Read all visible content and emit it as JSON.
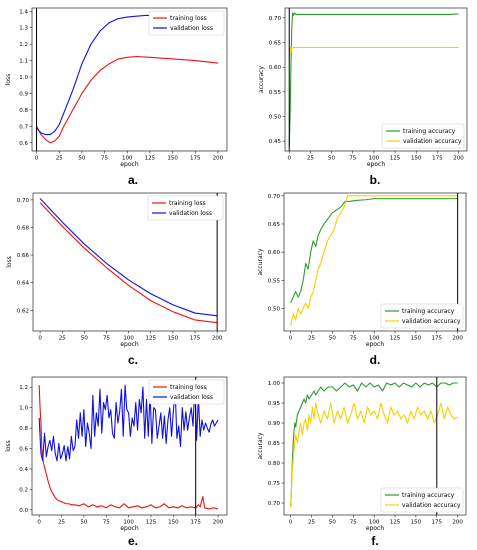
{
  "chart_data": [
    {
      "panel": "a.",
      "type": "line",
      "xlabel": "epoch",
      "ylabel": "loss",
      "xlim": [
        -5,
        210
      ],
      "ylim": [
        0.55,
        1.42
      ],
      "xticks": [
        0,
        25,
        50,
        75,
        100,
        125,
        150,
        175,
        200
      ],
      "yticks": [
        0.6,
        0.7,
        0.8,
        0.9,
        1.0,
        1.1,
        1.2,
        1.3,
        1.4
      ],
      "ytick_labels": [
        "0.6",
        "0.7",
        "0.8",
        "0.9",
        "1.0",
        "1.1",
        "1.2",
        "1.3",
        "1.4"
      ],
      "legend_position": "top-right",
      "vline_epoch": 0,
      "series": [
        {
          "name": "training loss",
          "color": "#ee1111",
          "x": [
            0,
            5,
            10,
            15,
            20,
            25,
            30,
            40,
            50,
            60,
            70,
            80,
            90,
            100,
            110,
            125,
            150,
            175,
            200
          ],
          "y": [
            0.7,
            0.65,
            0.62,
            0.6,
            0.61,
            0.64,
            0.7,
            0.8,
            0.9,
            0.98,
            1.04,
            1.08,
            1.11,
            1.12,
            1.125,
            1.12,
            1.11,
            1.1,
            1.085
          ]
        },
        {
          "name": "validation loss",
          "color": "#1111dd",
          "x": [
            0,
            5,
            10,
            15,
            20,
            25,
            30,
            40,
            50,
            60,
            70,
            80,
            90,
            100,
            110,
            120,
            150,
            175,
            200
          ],
          "y": [
            0.69,
            0.66,
            0.65,
            0.65,
            0.67,
            0.71,
            0.78,
            0.92,
            1.08,
            1.2,
            1.28,
            1.33,
            1.355,
            1.365,
            1.37,
            1.375,
            1.375,
            1.375,
            1.375
          ]
        }
      ]
    },
    {
      "panel": "b.",
      "type": "line",
      "xlabel": "epoch",
      "ylabel": "accuracy",
      "xlim": [
        -5,
        210
      ],
      "ylim": [
        0.43,
        0.72
      ],
      "xticks": [
        0,
        25,
        50,
        75,
        100,
        125,
        150,
        175,
        200
      ],
      "yticks": [
        0.45,
        0.5,
        0.55,
        0.6,
        0.65,
        0.7
      ],
      "ytick_labels": [
        "0.45",
        "0.50",
        "0.55",
        "0.60",
        "0.65",
        "0.70"
      ],
      "legend_position": "bottom-right",
      "vline_epoch": 0,
      "series": [
        {
          "name": "training accuracy",
          "color": "#2e9b2e",
          "x": [
            0,
            1,
            2,
            3,
            4,
            5,
            6,
            8,
            10,
            50,
            100,
            150,
            190,
            200
          ],
          "y": [
            0.44,
            0.5,
            0.6,
            0.68,
            0.71,
            0.705,
            0.71,
            0.707,
            0.707,
            0.707,
            0.707,
            0.707,
            0.707,
            0.708
          ]
        },
        {
          "name": "validation accuracy",
          "color": "#f2d200",
          "x": [
            0,
            1,
            2,
            3,
            4,
            5,
            6,
            8,
            10,
            50,
            100,
            150,
            200
          ],
          "y": [
            0.62,
            0.64,
            0.63,
            0.64,
            0.638,
            0.64,
            0.64,
            0.64,
            0.64,
            0.64,
            0.64,
            0.64,
            0.64
          ]
        }
      ]
    },
    {
      "panel": "c.",
      "type": "line",
      "xlabel": "epoch",
      "ylabel": "loss",
      "xlim": [
        -8,
        210
      ],
      "ylim": [
        0.605,
        0.705
      ],
      "xticks": [
        0,
        25,
        50,
        75,
        100,
        125,
        150,
        175,
        200
      ],
      "yticks": [
        0.62,
        0.64,
        0.66,
        0.68,
        0.7
      ],
      "ytick_labels": [
        "0.62",
        "0.64",
        "0.66",
        "0.68",
        "0.70"
      ],
      "legend_position": "top-right",
      "vline_epoch": 200,
      "series": [
        {
          "name": "training loss",
          "color": "#ee1111",
          "x": [
            0,
            25,
            50,
            75,
            100,
            125,
            150,
            175,
            200
          ],
          "y": [
            0.698,
            0.681,
            0.665,
            0.651,
            0.638,
            0.627,
            0.619,
            0.613,
            0.611
          ]
        },
        {
          "name": "validation loss",
          "color": "#1111dd",
          "x": [
            0,
            25,
            50,
            75,
            100,
            125,
            150,
            175,
            200
          ],
          "y": [
            0.701,
            0.684,
            0.668,
            0.654,
            0.642,
            0.632,
            0.624,
            0.618,
            0.616
          ]
        }
      ]
    },
    {
      "panel": "d.",
      "type": "line",
      "xlabel": "epoch",
      "ylabel": "accuracy",
      "xlim": [
        -8,
        210
      ],
      "ylim": [
        0.46,
        0.705
      ],
      "xticks": [
        0,
        25,
        50,
        75,
        100,
        125,
        150,
        175,
        200
      ],
      "yticks": [
        0.5,
        0.55,
        0.6,
        0.65,
        0.7
      ],
      "ytick_labels": [
        "0.50",
        "0.55",
        "0.60",
        "0.65",
        "0.70"
      ],
      "legend_position": "bottom-right",
      "vline_epoch": 200,
      "series": [
        {
          "name": "training accuracy",
          "color": "#2e9b2e",
          "x": [
            0,
            3,
            6,
            9,
            12,
            15,
            18,
            21,
            24,
            27,
            30,
            33,
            36,
            40,
            45,
            50,
            55,
            60,
            65,
            70,
            80,
            90,
            100,
            120,
            150,
            175,
            200
          ],
          "y": [
            0.51,
            0.52,
            0.53,
            0.52,
            0.53,
            0.55,
            0.58,
            0.57,
            0.6,
            0.62,
            0.61,
            0.63,
            0.64,
            0.65,
            0.66,
            0.67,
            0.675,
            0.68,
            0.69,
            0.69,
            0.692,
            0.693,
            0.695,
            0.695,
            0.695,
            0.695,
            0.695
          ]
        },
        {
          "name": "validation accuracy",
          "color": "#f2d200",
          "x": [
            0,
            3,
            6,
            9,
            12,
            15,
            18,
            21,
            24,
            27,
            30,
            33,
            36,
            40,
            44,
            48,
            52,
            56,
            60,
            64,
            68,
            72,
            80,
            100,
            150,
            200
          ],
          "y": [
            0.47,
            0.49,
            0.48,
            0.5,
            0.49,
            0.5,
            0.51,
            0.5,
            0.52,
            0.53,
            0.55,
            0.57,
            0.58,
            0.6,
            0.62,
            0.63,
            0.64,
            0.66,
            0.67,
            0.68,
            0.7,
            0.7,
            0.7,
            0.7,
            0.7,
            0.7
          ]
        }
      ]
    },
    {
      "panel": "e.",
      "type": "line",
      "xlabel": "epoch",
      "ylabel": "loss",
      "xlim": [
        -8,
        210
      ],
      "ylim": [
        -0.05,
        1.3
      ],
      "xticks": [
        0,
        25,
        50,
        75,
        100,
        125,
        150,
        175,
        200
      ],
      "yticks": [
        0.0,
        0.2,
        0.4,
        0.6,
        0.8,
        1.0,
        1.2
      ],
      "ytick_labels": [
        "0.0",
        "0.2",
        "0.4",
        "0.6",
        "0.8",
        "1.0",
        "1.2"
      ],
      "legend_position": "top-right",
      "vline_epoch": 175,
      "series": [
        {
          "name": "training loss",
          "color": "#ee1111",
          "x": [
            0,
            1,
            2,
            3,
            4,
            5,
            6,
            8,
            10,
            12,
            14,
            16,
            18,
            20,
            22,
            25,
            28,
            30,
            33,
            36,
            40,
            45,
            50,
            55,
            60,
            65,
            70,
            75,
            80,
            85,
            90,
            95,
            100,
            105,
            110,
            115,
            120,
            125,
            130,
            135,
            140,
            145,
            150,
            155,
            160,
            165,
            170,
            175,
            178,
            180,
            183,
            185,
            190,
            195,
            200
          ],
          "y": [
            1.22,
            1.0,
            0.85,
            0.6,
            0.5,
            0.45,
            0.42,
            0.35,
            0.28,
            0.22,
            0.18,
            0.15,
            0.12,
            0.1,
            0.09,
            0.08,
            0.07,
            0.06,
            0.06,
            0.05,
            0.05,
            0.04,
            0.06,
            0.03,
            0.05,
            0.03,
            0.04,
            0.02,
            0.05,
            0.03,
            0.02,
            0.06,
            0.02,
            0.03,
            0.04,
            0.02,
            0.03,
            0.05,
            0.02,
            0.03,
            0.06,
            0.02,
            0.03,
            0.02,
            0.04,
            0.02,
            0.03,
            0.02,
            0.05,
            0.03,
            0.13,
            0.02,
            0.01,
            0.02,
            0.01
          ]
        },
        {
          "name": "validation loss",
          "color": "#1111dd",
          "x": [
            0,
            2,
            4,
            6,
            8,
            10,
            12,
            14,
            16,
            18,
            20,
            22,
            24,
            26,
            28,
            30,
            32,
            34,
            36,
            38,
            40,
            42,
            44,
            46,
            48,
            50,
            52,
            54,
            56,
            58,
            60,
            62,
            64,
            66,
            68,
            70,
            72,
            74,
            76,
            78,
            80,
            82,
            84,
            86,
            88,
            90,
            92,
            94,
            96,
            98,
            100,
            102,
            104,
            106,
            108,
            110,
            112,
            114,
            116,
            118,
            120,
            122,
            124,
            126,
            128,
            130,
            132,
            134,
            136,
            138,
            140,
            142,
            144,
            146,
            148,
            150,
            152,
            154,
            156,
            158,
            160,
            162,
            164,
            166,
            168,
            170,
            172,
            174,
            176,
            178,
            180,
            182,
            184,
            186,
            188,
            190,
            192,
            194,
            196,
            198,
            200
          ],
          "y": [
            0.9,
            0.55,
            0.48,
            0.75,
            0.52,
            0.62,
            0.68,
            0.58,
            0.72,
            0.55,
            0.48,
            0.65,
            0.5,
            0.55,
            0.63,
            0.48,
            0.62,
            0.5,
            0.72,
            0.58,
            0.62,
            0.88,
            0.7,
            0.95,
            0.72,
            0.98,
            0.62,
            0.85,
            0.75,
            0.6,
            1.12,
            0.72,
            0.95,
            0.82,
            1.18,
            0.75,
            1.05,
            0.98,
            1.12,
            0.9,
            0.98,
            0.75,
            0.7,
            1.05,
            0.85,
            0.96,
            1.18,
            0.72,
            1.22,
            0.98,
            0.95,
            0.72,
            0.9,
            0.82,
            1.05,
            0.78,
            1.08,
            0.95,
            1.2,
            0.7,
            1.08,
            0.72,
            1.15,
            0.65,
            1.0,
            0.98,
            0.7,
            0.82,
            0.95,
            0.7,
            0.92,
            0.65,
            0.88,
            1.0,
            0.72,
            0.96,
            1.18,
            0.7,
            0.82,
            0.62,
            1.0,
            0.78,
            0.96,
            0.78,
            0.9,
            1.0,
            0.82,
            1.22,
            0.68,
            1.1,
            0.72,
            0.88,
            0.78,
            0.85,
            0.8,
            0.76,
            0.84,
            0.88,
            0.82,
            0.85,
            0.88
          ]
        }
      ]
    },
    {
      "panel": "f.",
      "type": "line",
      "xlabel": "epoch",
      "ylabel": "accuracy",
      "xlim": [
        -8,
        210
      ],
      "ylim": [
        0.67,
        1.015
      ],
      "xticks": [
        0,
        25,
        50,
        75,
        100,
        125,
        150,
        175,
        200
      ],
      "yticks": [
        0.7,
        0.75,
        0.8,
        0.85,
        0.9,
        0.95,
        1.0
      ],
      "ytick_labels": [
        "0.70",
        "0.75",
        "0.80",
        "0.85",
        "0.90",
        "0.95",
        "1.00"
      ],
      "legend_position": "bottom-right",
      "vline_epoch": 175,
      "series": [
        {
          "name": "training accuracy",
          "color": "#2e9b2e",
          "x": [
            0,
            1,
            2,
            3,
            4,
            5,
            6,
            8,
            10,
            12,
            14,
            16,
            18,
            20,
            22,
            25,
            28,
            30,
            33,
            36,
            40,
            45,
            50,
            55,
            60,
            65,
            70,
            75,
            80,
            85,
            90,
            95,
            100,
            105,
            110,
            115,
            120,
            125,
            130,
            135,
            140,
            145,
            150,
            155,
            160,
            165,
            170,
            175,
            180,
            185,
            190,
            195,
            200
          ],
          "y": [
            0.69,
            0.74,
            0.8,
            0.85,
            0.88,
            0.9,
            0.89,
            0.92,
            0.93,
            0.94,
            0.95,
            0.96,
            0.95,
            0.97,
            0.96,
            0.97,
            0.98,
            0.97,
            0.98,
            0.99,
            0.98,
            0.99,
            0.99,
            0.98,
            0.99,
            1.0,
            0.99,
            0.995,
            0.98,
            1.0,
            0.99,
            1.0,
            0.99,
            0.995,
            0.98,
            1.0,
            0.995,
            1.0,
            0.99,
            1.0,
            0.995,
            0.99,
            1.0,
            0.99,
            1.0,
            0.995,
            1.0,
            0.99,
            1.0,
            1.0,
            0.995,
            1.0,
            1.0
          ]
        },
        {
          "name": "validation accuracy",
          "color": "#f2d200",
          "x": [
            0,
            2,
            4,
            6,
            8,
            10,
            12,
            14,
            16,
            18,
            20,
            22,
            24,
            26,
            28,
            30,
            33,
            36,
            40,
            44,
            48,
            52,
            56,
            60,
            64,
            68,
            72,
            76,
            80,
            84,
            88,
            92,
            96,
            100,
            104,
            108,
            112,
            116,
            120,
            124,
            128,
            132,
            136,
            140,
            144,
            148,
            152,
            156,
            160,
            164,
            168,
            172,
            176,
            180,
            184,
            188,
            192,
            196,
            200
          ],
          "y": [
            0.69,
            0.78,
            0.84,
            0.87,
            0.85,
            0.88,
            0.9,
            0.87,
            0.9,
            0.91,
            0.88,
            0.92,
            0.9,
            0.94,
            0.91,
            0.95,
            0.92,
            0.9,
            0.93,
            0.91,
            0.95,
            0.9,
            0.93,
            0.91,
            0.94,
            0.9,
            0.92,
            0.95,
            0.91,
            0.93,
            0.9,
            0.94,
            0.92,
            0.93,
            0.91,
            0.95,
            0.92,
            0.9,
            0.94,
            0.92,
            0.93,
            0.91,
            0.92,
            0.9,
            0.93,
            0.91,
            0.94,
            0.92,
            0.93,
            0.91,
            0.93,
            0.9,
            0.92,
            0.95,
            0.91,
            0.94,
            0.92,
            0.91,
            0.915
          ]
        }
      ]
    }
  ]
}
